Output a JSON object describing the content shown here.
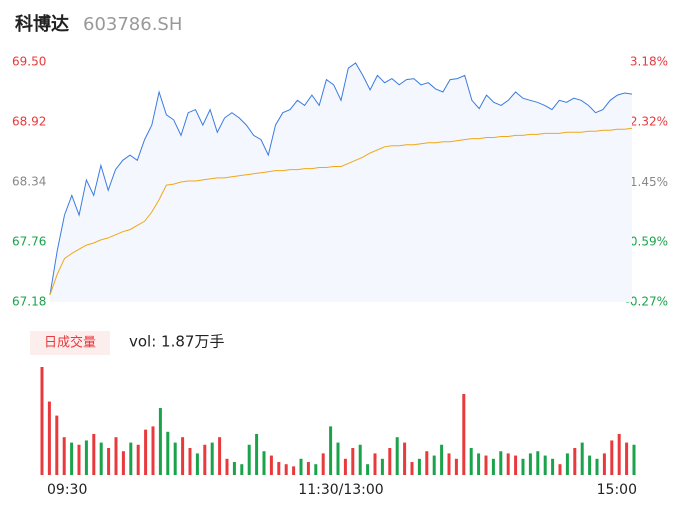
{
  "chart_data": [
    {
      "type": "line",
      "title": "科博达",
      "subtitle": "603786.SH",
      "x": [
        0,
        3,
        6,
        9,
        12,
        15,
        18,
        21,
        24,
        27,
        30,
        33,
        36,
        39,
        42,
        45,
        48,
        51,
        54,
        57,
        60,
        63,
        66,
        69,
        72,
        75,
        78,
        81,
        84,
        87,
        90,
        93,
        96,
        99,
        102,
        105,
        108,
        111,
        114,
        117,
        120,
        123,
        126,
        129,
        132,
        135,
        138,
        141,
        144,
        147,
        150,
        153,
        156,
        159,
        162,
        165,
        168,
        171,
        174,
        177,
        180,
        183,
        186,
        189,
        192,
        195,
        198,
        201,
        204,
        207,
        210,
        213,
        216,
        219,
        222,
        225,
        228,
        231,
        234,
        237,
        240
      ],
      "xlim": [
        0,
        240
      ],
      "xticks": [
        {
          "value": 0,
          "label": "09:30"
        },
        {
          "value": 120,
          "label": "11:30/13:00"
        },
        {
          "value": 240,
          "label": "15:00"
        }
      ],
      "ylim": [
        67.18,
        69.5
      ],
      "yticks": [
        67.18,
        67.76,
        68.34,
        68.92,
        {
          "value": 69.5,
          "label": "69.50"
        }
      ],
      "y2lim": [
        -0.27,
        3.18
      ],
      "y2ticks": [
        {
          "value": -0.27,
          "label": "-0.27%"
        },
        {
          "value": 0.59,
          "label": "0.59%"
        },
        {
          "value": 1.45,
          "label": "1.45%"
        },
        {
          "value": 2.32,
          "label": "2.32%"
        },
        {
          "value": 3.18,
          "label": "3.18%"
        }
      ],
      "up_color": "#e8393c",
      "down_color": "#1aa34a",
      "flat_color": "#888888",
      "series": [
        {
          "name": "price",
          "color": "#3b7be0",
          "values": [
            67.25,
            67.68,
            68.02,
            68.21,
            68.02,
            68.36,
            68.21,
            68.5,
            68.26,
            68.46,
            68.55,
            68.6,
            68.55,
            68.75,
            68.89,
            69.21,
            68.99,
            68.94,
            68.79,
            69.01,
            69.04,
            68.89,
            69.04,
            68.82,
            68.96,
            69.01,
            68.96,
            68.89,
            68.79,
            68.75,
            68.6,
            68.89,
            69.01,
            69.04,
            69.13,
            69.08,
            69.18,
            69.08,
            69.33,
            69.28,
            69.13,
            69.44,
            69.49,
            69.37,
            69.23,
            69.37,
            69.3,
            69.34,
            69.28,
            69.33,
            69.34,
            69.28,
            69.3,
            69.24,
            69.21,
            69.33,
            69.34,
            69.37,
            69.13,
            69.05,
            69.18,
            69.11,
            69.08,
            69.13,
            69.21,
            69.15,
            69.13,
            69.11,
            69.08,
            69.04,
            69.13,
            69.11,
            69.15,
            69.13,
            69.08,
            69.01,
            69.04,
            69.13,
            69.18,
            69.2,
            69.19
          ]
        },
        {
          "name": "average",
          "color": "#f0a818",
          "values": [
            67.25,
            67.45,
            67.6,
            67.65,
            67.69,
            67.73,
            67.75,
            67.78,
            67.8,
            67.83,
            67.86,
            67.88,
            67.92,
            67.96,
            68.05,
            68.17,
            68.31,
            68.32,
            68.34,
            68.35,
            68.35,
            68.36,
            68.37,
            68.38,
            68.38,
            68.39,
            68.4,
            68.41,
            68.42,
            68.43,
            68.44,
            68.45,
            68.45,
            68.46,
            68.46,
            68.47,
            68.47,
            68.48,
            68.48,
            68.49,
            68.49,
            68.52,
            68.55,
            68.58,
            68.62,
            68.65,
            68.68,
            68.69,
            68.69,
            68.7,
            68.7,
            68.71,
            68.72,
            68.72,
            68.73,
            68.73,
            68.74,
            68.75,
            68.76,
            68.76,
            68.77,
            68.77,
            68.78,
            68.78,
            68.79,
            68.79,
            68.8,
            68.8,
            68.81,
            68.81,
            68.81,
            68.82,
            68.82,
            68.82,
            68.83,
            68.83,
            68.84,
            68.84,
            68.85,
            68.85,
            68.86
          ]
        }
      ]
    },
    {
      "type": "bar",
      "title": "日成交量",
      "annotation": "vol: 1.87万手",
      "x": [
        0,
        3,
        6,
        9,
        12,
        15,
        18,
        21,
        24,
        27,
        30,
        33,
        36,
        39,
        42,
        45,
        48,
        51,
        54,
        57,
        60,
        63,
        66,
        69,
        72,
        75,
        78,
        81,
        84,
        87,
        90,
        93,
        96,
        99,
        102,
        105,
        108,
        111,
        114,
        117,
        120,
        123,
        126,
        129,
        132,
        135,
        138,
        141,
        144,
        147,
        150,
        153,
        156,
        159,
        162,
        165,
        168,
        171,
        174,
        177,
        180,
        183,
        186,
        189,
        192,
        195,
        198,
        201,
        204,
        207,
        210,
        213,
        216,
        219,
        222,
        225,
        228,
        231,
        234,
        237,
        240
      ],
      "xlim": [
        0,
        240
      ],
      "ylim": [
        0,
        100
      ],
      "values": [
        100,
        68,
        55,
        35,
        30,
        28,
        32,
        38,
        30,
        25,
        35,
        22,
        30,
        28,
        42,
        45,
        62,
        40,
        30,
        35,
        25,
        20,
        28,
        30,
        35,
        15,
        12,
        10,
        28,
        38,
        22,
        18,
        12,
        10,
        8,
        15,
        12,
        10,
        20,
        45,
        30,
        15,
        25,
        28,
        10,
        20,
        15,
        25,
        35,
        30,
        12,
        15,
        22,
        18,
        28,
        20,
        15,
        75,
        25,
        20,
        18,
        15,
        22,
        20,
        18,
        15,
        20,
        22,
        18,
        15,
        10,
        20,
        25,
        30,
        18,
        15,
        20,
        32,
        38,
        30,
        28
      ]
    }
  ]
}
